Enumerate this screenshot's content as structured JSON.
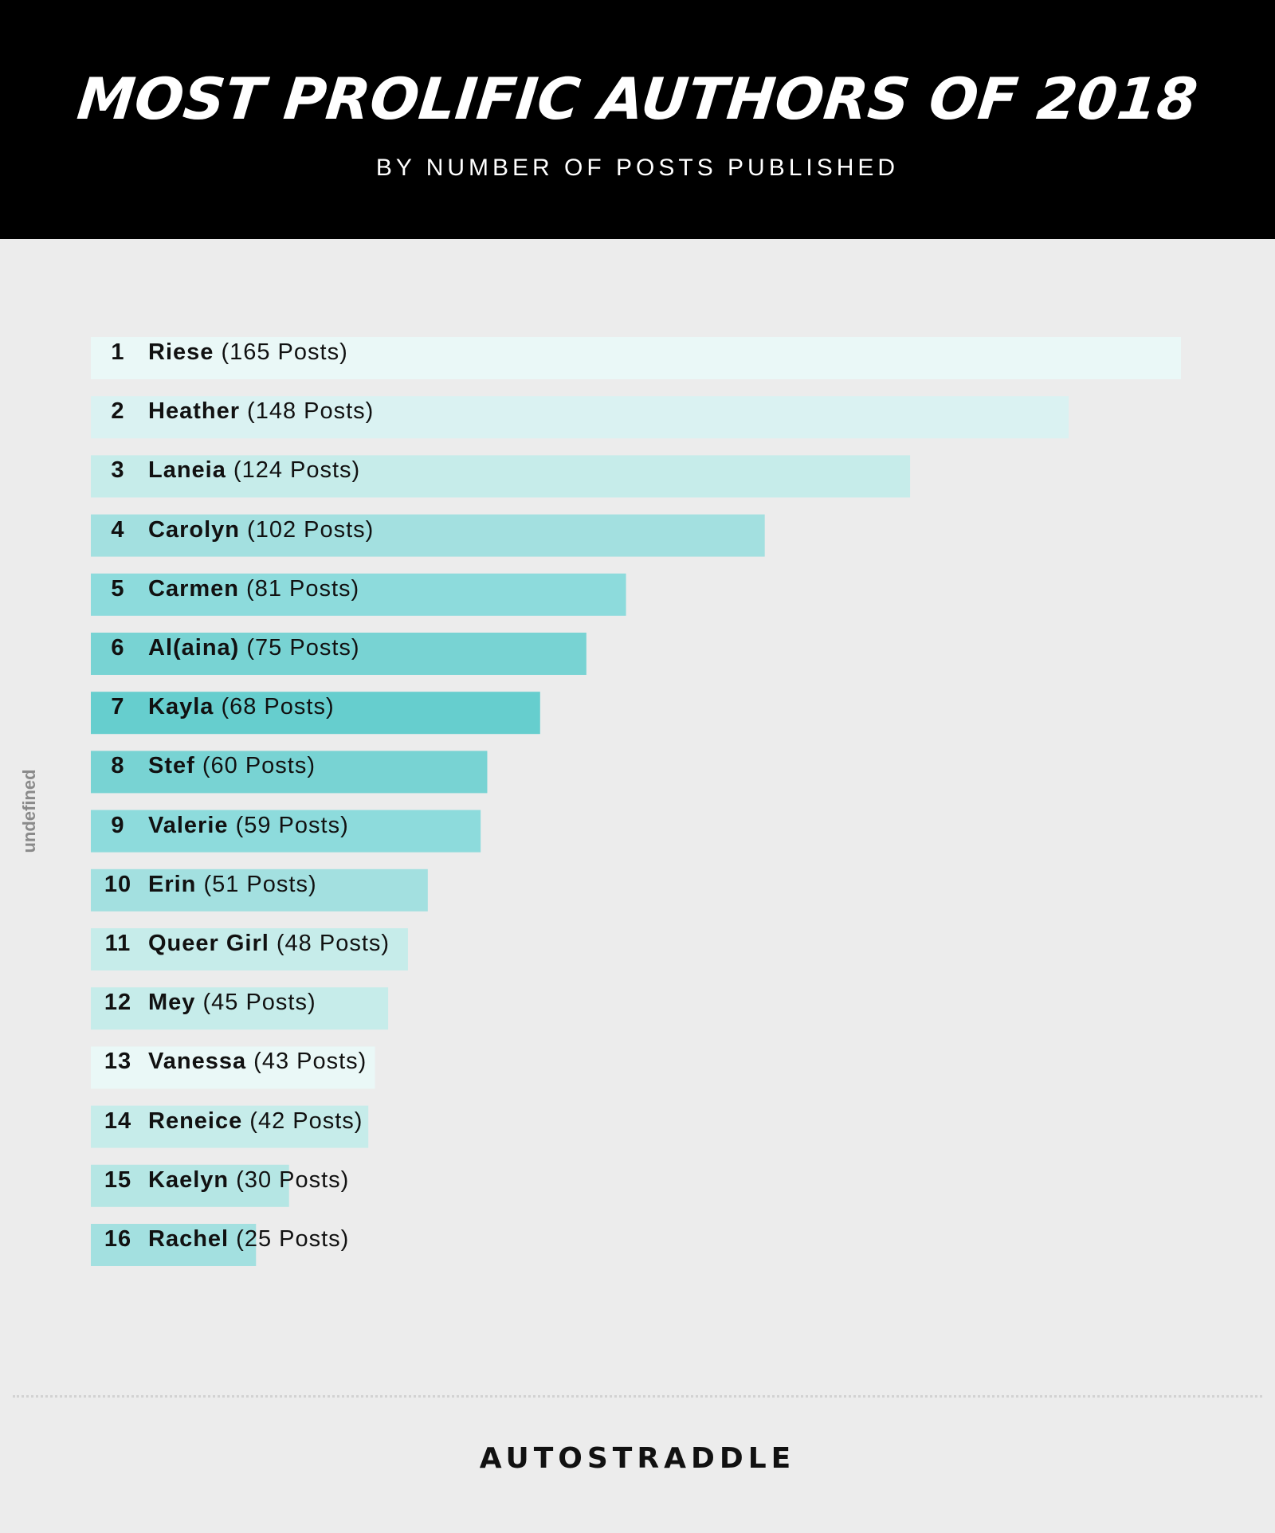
{
  "header": {
    "title": "MOST PROLIFIC AUTHORS OF 2018",
    "subtitle": "BY NUMBER OF POSTS PUBLISHED"
  },
  "chart_data": {
    "type": "bar",
    "orientation": "horizontal",
    "title": "MOST PROLIFIC AUTHORS OF 2018",
    "subtitle": "BY NUMBER OF POSTS PUBLISHED",
    "ylabel": "undefined",
    "grid": false,
    "legend": "none",
    "categories": [
      "Riese",
      "Heather",
      "Laneia",
      "Carolyn",
      "Carmen",
      "Al(aina)",
      "Kayla",
      "Stef",
      "Valerie",
      "Erin",
      "Queer Girl",
      "Mey",
      "Vanessa",
      "Reneice",
      "Kaelyn",
      "Rachel"
    ],
    "values": [
      165,
      148,
      124,
      102,
      81,
      75,
      68,
      60,
      59,
      51,
      48,
      45,
      43,
      42,
      30,
      25
    ],
    "ranks": [
      "1",
      "2",
      "3",
      "4",
      "5",
      "6",
      "7",
      "8",
      "9",
      "10",
      "11",
      "12",
      "13",
      "14",
      "15",
      "16"
    ],
    "value_labels": [
      "(165 Posts)",
      "(148 Posts)",
      "(124 Posts)",
      "(102 Posts)",
      "(81 Posts)",
      "(75 Posts)",
      "(68 Posts)",
      "(60 Posts)",
      "(59 Posts)",
      "(51 Posts)",
      "(48 Posts)",
      "(45 Posts)",
      "(43 Posts)",
      "(42 Posts)",
      "(30 Posts)",
      "(25 Posts)"
    ],
    "xlim": [
      0,
      165
    ],
    "colors": [
      "#eaf8f7",
      "#daf2f2",
      "#c6ecea",
      "#a3e0e0",
      "#8ddbdc",
      "#78d3d3",
      "#66cece",
      "#78d3d3",
      "#8ddbdc",
      "#a3e0e0",
      "#c6ecea",
      "#c6ecea",
      "#eaf8f7",
      "#c6ecea",
      "#b5e6e4",
      "#a3e0e0"
    ]
  },
  "footer": {
    "brand": "AUTOSTRADDLE"
  }
}
